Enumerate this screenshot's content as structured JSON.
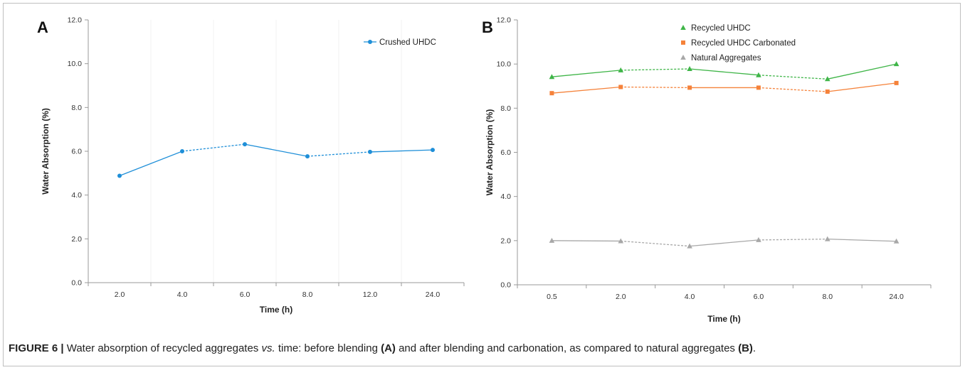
{
  "figure": {
    "caption": {
      "label": "FIGURE 6 |",
      "text_1": " Water absorption of recycled aggregates ",
      "text_vs": "vs.",
      "text_2": " time: before blending ",
      "ref_a": "(A)",
      "text_3": " and after blending and carbonation, as compared to natural aggregates ",
      "ref_b": "(B)",
      "text_4": "."
    }
  },
  "chart_data": [
    {
      "panel_label": "A",
      "type": "line",
      "categories": [
        "2.0",
        "4.0",
        "6.0",
        "8.0",
        "12.0",
        "24.0"
      ],
      "xlabel": "Time (h)",
      "ylabel": "Water Absorption (%)",
      "ylim": [
        0,
        12
      ],
      "yticks": [
        "0.0",
        "2.0",
        "4.0",
        "6.0",
        "8.0",
        "10.0",
        "12.0"
      ],
      "grid": "faint vertical",
      "legend": "top-right",
      "series": [
        {
          "name": "Crushed UHDC",
          "values": [
            4.88,
            6.0,
            6.32,
            5.77,
            5.97,
            6.06
          ],
          "color": "#1f8fd8",
          "marker": "circle"
        }
      ]
    },
    {
      "panel_label": "B",
      "type": "line",
      "categories": [
        "0.5",
        "2.0",
        "4.0",
        "6.0",
        "8.0",
        "24.0"
      ],
      "xlabel": "Time (h)",
      "ylabel": "Water Absorption (%)",
      "ylim": [
        0,
        12
      ],
      "yticks": [
        "0.0",
        "2.0",
        "4.0",
        "6.0",
        "8.0",
        "10.0",
        "12.0"
      ],
      "grid": "none",
      "legend": "top-right",
      "series": [
        {
          "name": "Recycled UHDC",
          "values": [
            9.42,
            9.72,
            9.78,
            9.5,
            9.32,
            10.0
          ],
          "color": "#3fb548",
          "marker": "triangle"
        },
        {
          "name": "Recycled UHDC Carbonated",
          "values": [
            8.68,
            8.96,
            8.93,
            8.93,
            8.75,
            9.14
          ],
          "color": "#f5823a",
          "marker": "square"
        },
        {
          "name": "Natural Aggregates",
          "values": [
            2.0,
            1.98,
            1.75,
            2.03,
            2.07,
            1.97
          ],
          "color": "#a8a8a8",
          "marker": "triangle"
        }
      ]
    }
  ]
}
